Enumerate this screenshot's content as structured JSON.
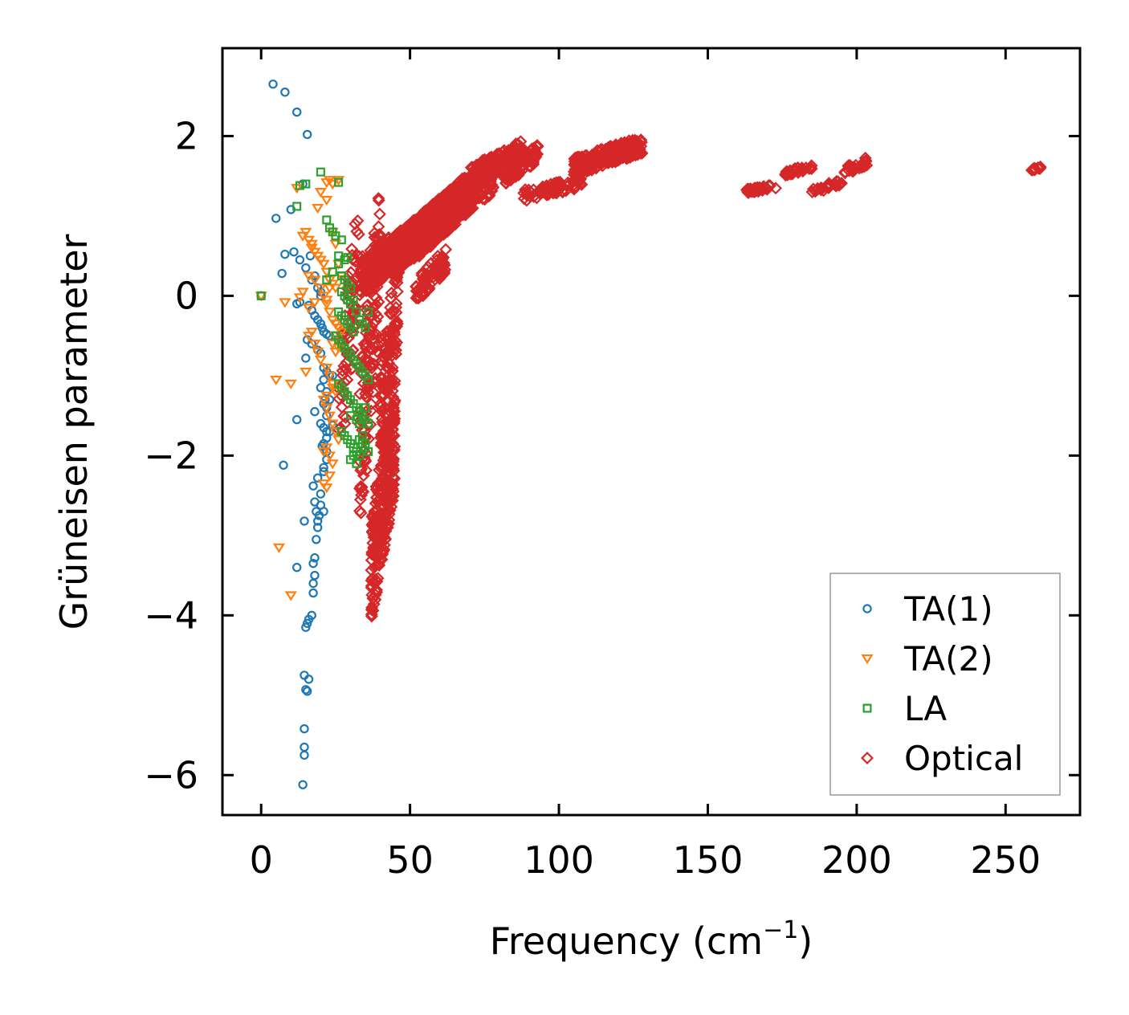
{
  "chart_data": {
    "type": "scatter",
    "title": "",
    "xlabel": "Frequency (cm",
    "xlabel_sup": "−1",
    "xlabel_close": ")",
    "ylabel": "Grüneisen parameter",
    "xlim": [
      -13,
      275
    ],
    "ylim": [
      -6.5,
      3.1
    ],
    "xticks": [
      0,
      50,
      100,
      150,
      200,
      250
    ],
    "xtick_labels": [
      "0",
      "50",
      "100",
      "150",
      "200",
      "250"
    ],
    "yticks": [
      -6,
      -4,
      -2,
      0,
      2
    ],
    "ytick_labels": [
      "−6",
      "−4",
      "−2",
      "0",
      "2"
    ],
    "grid": false,
    "legend_position": "lower-right",
    "series": [
      {
        "name": "TA(1)",
        "marker": "circle",
        "color": "#1f77b4",
        "x": [
          4,
          8,
          12,
          15.5,
          5,
          10,
          14,
          8,
          7,
          11,
          13,
          15,
          16.5,
          17,
          18,
          19,
          20,
          0,
          12,
          13,
          16,
          17,
          18,
          19,
          20,
          20.5,
          21,
          22,
          23,
          15.5,
          17,
          15,
          19,
          20,
          21,
          22,
          23,
          21,
          20,
          22,
          21.5,
          18,
          21,
          22,
          12,
          20,
          21,
          22,
          21,
          20.5,
          22,
          22,
          21,
          7.5,
          21,
          19,
          17.5,
          20,
          14.5,
          18,
          20,
          21,
          19.5,
          18.5,
          19,
          19,
          18.5,
          12,
          18,
          17.5,
          18,
          17.5,
          17.5,
          17,
          16,
          15.5,
          15,
          14.5,
          16,
          15,
          15.5,
          14.5,
          14.5,
          14.5,
          14,
          22,
          23,
          24,
          22,
          23,
          20,
          24
        ],
        "y": [
          2.65,
          2.55,
          2.3,
          2.02,
          0.97,
          1.08,
          1.4,
          0.52,
          0.28,
          0.55,
          0.45,
          0.35,
          0.5,
          0.2,
          0.25,
          0.1,
          0.05,
          0.0,
          -0.1,
          -0.08,
          -0.12,
          -0.18,
          -0.25,
          -0.3,
          -0.35,
          -0.4,
          -0.45,
          -0.48,
          -0.5,
          -0.55,
          -0.6,
          -0.78,
          -0.68,
          -0.72,
          -0.9,
          -0.95,
          -1.0,
          -1.05,
          -1.15,
          -1.2,
          -1.3,
          -1.45,
          -1.35,
          -1.5,
          -1.55,
          -1.6,
          -1.65,
          -1.7,
          -1.85,
          -1.88,
          -1.95,
          -2.05,
          -2.15,
          -2.12,
          -2.2,
          -2.28,
          -2.38,
          -2.48,
          -2.82,
          -2.58,
          -2.62,
          -2.7,
          -2.75,
          -2.7,
          -2.82,
          -2.9,
          -3.05,
          -3.4,
          -3.28,
          -3.35,
          -3.5,
          -3.6,
          -3.72,
          -4.0,
          -4.05,
          -4.1,
          -4.15,
          -4.75,
          -4.8,
          -4.93,
          -4.95,
          -5.42,
          -5.65,
          -5.75,
          -6.12,
          -1.78,
          -1.7,
          -1.62,
          -1.4,
          -1.3,
          0.0,
          -1.0
        ]
      },
      {
        "name": "TA(2)",
        "marker": "triangle-down",
        "color": "#ff7f0e",
        "x": [
          0,
          8,
          5,
          10,
          15,
          19,
          22,
          23,
          24,
          14,
          15,
          16,
          17,
          18,
          19,
          20,
          21,
          22,
          23,
          24,
          25,
          21,
          22,
          23,
          24,
          25,
          26,
          27,
          16,
          17,
          18,
          19,
          20,
          22,
          23,
          24,
          25,
          14,
          16,
          18,
          20,
          22,
          24,
          25,
          26,
          21,
          22,
          23,
          24,
          25,
          26,
          22,
          23,
          24,
          22,
          6,
          10,
          13,
          16,
          18,
          12,
          17,
          20,
          22,
          24,
          25,
          26,
          24,
          22,
          21,
          23,
          21,
          27,
          23,
          25,
          26
        ],
        "y": [
          0.0,
          -0.08,
          -1.05,
          -1.1,
          -0.95,
          1.1,
          1.42,
          1.45,
          1.4,
          0.75,
          0.8,
          0.7,
          0.6,
          0.55,
          0.5,
          0.45,
          0.4,
          0.3,
          0.2,
          0.15,
          0.1,
          0.0,
          -0.1,
          -0.2,
          -0.3,
          -0.35,
          -0.4,
          -0.45,
          -0.5,
          -0.45,
          -0.6,
          -0.7,
          -0.8,
          -0.9,
          -1.0,
          -1.1,
          -1.2,
          0.05,
          0.25,
          0.2,
          0.1,
          -0.05,
          -0.6,
          -0.7,
          -0.65,
          -1.3,
          -1.4,
          -1.5,
          -1.6,
          -1.7,
          -1.8,
          -1.9,
          -2.0,
          -2.1,
          -2.4,
          -3.15,
          -3.75,
          -0.02,
          -0.15,
          -0.08,
          1.35,
          0.65,
          1.3,
          1.2,
          0.8,
          0.65,
          0.4,
          -1.15,
          -1.25,
          -2.35,
          -2.25,
          -1.95,
          0.25,
          0.1,
          -0.5,
          1.45
        ]
      },
      {
        "name": "LA",
        "marker": "square",
        "color": "#2ca02c",
        "x": [
          0,
          13,
          15,
          20,
          26,
          12,
          22,
          23,
          24,
          25,
          27,
          26,
          28,
          29,
          27,
          28,
          29,
          30,
          27,
          28,
          29,
          30,
          31,
          26,
          27,
          28,
          29,
          30,
          31,
          32,
          33,
          34,
          35,
          36,
          25,
          26,
          27,
          28,
          29,
          30,
          31,
          32,
          33,
          34,
          35,
          36,
          26,
          27,
          28,
          29,
          30,
          31,
          32,
          33,
          34,
          35,
          36,
          30,
          32,
          33,
          34,
          35,
          27,
          28,
          29,
          30,
          31,
          32,
          33,
          34,
          35,
          36,
          30,
          31,
          32,
          33,
          34,
          35,
          22,
          24,
          26
        ],
        "y": [
          0.0,
          1.38,
          1.4,
          1.55,
          1.42,
          1.12,
          0.95,
          0.85,
          0.8,
          0.75,
          0.7,
          0.5,
          0.45,
          0.48,
          0.25,
          0.2,
          0.15,
          0.1,
          0.05,
          0.0,
          -0.05,
          -0.1,
          -0.05,
          -0.2,
          -0.25,
          -0.3,
          -0.35,
          -0.4,
          -0.45,
          -0.2,
          -0.3,
          -0.35,
          -0.4,
          -0.2,
          -0.5,
          -0.55,
          -0.6,
          -0.65,
          -0.7,
          -0.75,
          -0.8,
          -0.85,
          -0.9,
          -0.95,
          -1.0,
          -1.05,
          -1.1,
          -1.15,
          -1.2,
          -1.25,
          -1.3,
          -1.35,
          -1.4,
          -1.45,
          -1.5,
          -1.55,
          -1.6,
          -1.5,
          -1.55,
          -1.6,
          -1.5,
          -1.4,
          -1.7,
          -1.75,
          -1.8,
          -1.85,
          -1.9,
          -1.95,
          -2.0,
          -1.85,
          -1.9,
          -1.95,
          -2.05,
          -2.0,
          -2.1,
          -1.8,
          -1.75,
          -1.85,
          0.2,
          0.3,
          0.4
        ]
      },
      {
        "name": "Optical",
        "marker": "diamond",
        "color": "#d62728",
        "clusters": [
          {
            "x": [
              26,
              33
            ],
            "y": [
              -2.2,
              1.3
            ],
            "n": 80
          },
          {
            "x": [
              33,
              40
            ],
            "y": [
              -3.0,
              1.5
            ],
            "n": 140
          },
          {
            "x": [
              37,
              45
            ],
            "y": [
              -4.1,
              -1.0
            ],
            "n": 300
          },
          {
            "x": [
              40,
              46
            ],
            "y": [
              -2.0,
              0.6
            ],
            "n": 120
          },
          {
            "x": [
              33,
              55
            ],
            "y": [
              0.0,
              1.05
            ],
            "n": 360
          },
          {
            "x": [
              45,
              64
            ],
            "y": [
              0.25,
              1.35
            ],
            "n": 420
          },
          {
            "x": [
              52,
              70
            ],
            "y": [
              0.45,
              1.55
            ],
            "n": 360
          },
          {
            "x": [
              58,
              78
            ],
            "y": [
              0.75,
              1.7
            ],
            "n": 260
          },
          {
            "x": [
              52,
              62
            ],
            "y": [
              -0.1,
              0.6
            ],
            "n": 80
          },
          {
            "x": [
              70,
              88
            ],
            "y": [
              1.35,
              1.95
            ],
            "n": 200
          },
          {
            "x": [
              82,
              93
            ],
            "y": [
              1.4,
              1.9
            ],
            "n": 100
          },
          {
            "x": [
              88,
              108
            ],
            "y": [
              1.18,
              1.5
            ],
            "n": 70
          },
          {
            "x": [
              105,
              128
            ],
            "y": [
              1.5,
              2.0
            ],
            "n": 240
          },
          {
            "x": [
              163,
              173
            ],
            "y": [
              1.28,
              1.4
            ],
            "n": 40
          },
          {
            "x": [
              176,
              185
            ],
            "y": [
              1.5,
              1.65
            ],
            "n": 30
          },
          {
            "x": [
              185,
              195
            ],
            "y": [
              1.28,
              1.45
            ],
            "n": 30
          },
          {
            "x": [
              196,
              204
            ],
            "y": [
              1.5,
              1.75
            ],
            "n": 30
          },
          {
            "x": [
              258,
              262
            ],
            "y": [
              1.55,
              1.62
            ],
            "n": 14
          }
        ]
      }
    ]
  }
}
